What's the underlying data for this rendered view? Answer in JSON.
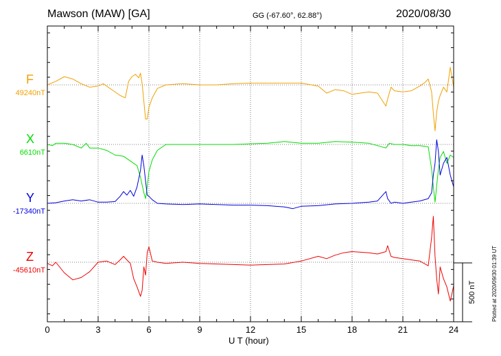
{
  "header": {
    "station": "Mawson (MAW)  [GA]",
    "coords": "GG (-67.60°,  62.88°)",
    "date": "2020/08/30"
  },
  "side_note": "Plotted at 2020/09/30 01:39 UT",
  "scale_bar": {
    "label": "500 nT",
    "value_nT": 500
  },
  "chart_data": {
    "type": "line",
    "title": "",
    "xlabel": "U T (hour)",
    "ylabel": "",
    "xlim": [
      0,
      24
    ],
    "x_ticks": [
      0,
      3,
      6,
      9,
      12,
      15,
      18,
      21,
      24
    ],
    "x_tick_labels": [
      "0",
      "3",
      "6",
      "9",
      "12",
      "15",
      "18",
      "21",
      "24"
    ],
    "grid": true,
    "series": [
      {
        "name": "F",
        "baseline_label": "49240nT",
        "baseline_nT": 49240,
        "color": "#f0a000",
        "x": [
          0,
          0.5,
          1,
          1.5,
          2,
          2.5,
          3,
          3.3,
          3.8,
          4.3,
          4.6,
          4.8,
          5,
          5.2,
          5.4,
          5.5,
          5.6,
          5.7,
          5.8,
          5.9,
          6.0,
          6.2,
          6.5,
          7,
          8,
          9,
          10,
          11,
          12,
          13,
          14,
          15,
          16,
          16.5,
          17,
          17.5,
          18,
          19,
          19.5,
          20,
          20.1,
          20.3,
          20.5,
          21,
          21.5,
          22,
          22.3,
          22.5,
          22.7,
          22.8,
          22.9,
          23.0,
          23.1,
          23.2,
          23.4,
          23.6,
          23.8,
          24
        ],
        "y": [
          49240,
          49270,
          49310,
          49290,
          49250,
          49220,
          49230,
          49250,
          49200,
          49150,
          49130,
          49270,
          49310,
          49330,
          49300,
          49340,
          49250,
          49100,
          48950,
          48950,
          49050,
          49130,
          49210,
          49240,
          49250,
          49240,
          49240,
          49250,
          49255,
          49255,
          49255,
          49255,
          49230,
          49170,
          49200,
          49190,
          49160,
          49180,
          49170,
          49060,
          49120,
          49220,
          49190,
          49180,
          49190,
          49230,
          49260,
          49290,
          49180,
          49000,
          48850,
          49010,
          49100,
          49150,
          49220,
          49180,
          49390,
          49220
        ]
      },
      {
        "name": "X",
        "baseline_label": "6610nT",
        "baseline_nT": 6610,
        "color": "#00dd00",
        "x": [
          0,
          0.3,
          0.5,
          1,
          1.5,
          2,
          2.3,
          2.5,
          3,
          3.5,
          4,
          4.5,
          5,
          5.3,
          5.5,
          5.7,
          5.8,
          5.9,
          6.0,
          6.2,
          6.5,
          7,
          8,
          9,
          10,
          11,
          12,
          13,
          14,
          15,
          16,
          17,
          18,
          19,
          19.5,
          20,
          20.2,
          20.5,
          21,
          21.5,
          22,
          22.5,
          22.7,
          22.8,
          22.9,
          23.0,
          23.1,
          23.2,
          23.4,
          23.6,
          23.8,
          24
        ],
        "y": [
          6610,
          6600,
          6620,
          6620,
          6610,
          6580,
          6620,
          6580,
          6580,
          6560,
          6520,
          6510,
          6460,
          6430,
          6330,
          6200,
          6150,
          6250,
          6380,
          6480,
          6560,
          6610,
          6610,
          6610,
          6610,
          6610,
          6615,
          6620,
          6635,
          6620,
          6620,
          6635,
          6630,
          6620,
          6600,
          6580,
          6620,
          6610,
          6610,
          6600,
          6600,
          6590,
          6400,
          6250,
          6120,
          6260,
          6400,
          6500,
          6550,
          6450,
          6520,
          6500
        ]
      },
      {
        "name": "Y",
        "baseline_label": "-17340nT",
        "baseline_nT": -17340,
        "color": "#0000dd",
        "x": [
          0,
          0.5,
          1,
          1.5,
          2,
          2.5,
          3,
          3.5,
          4,
          4.3,
          4.5,
          4.7,
          4.9,
          5.1,
          5.3,
          5.5,
          5.6,
          5.7,
          5.8,
          5.9,
          6.0,
          6.2,
          6.5,
          7,
          8,
          9,
          10,
          11,
          12,
          13,
          14,
          14.5,
          15,
          16,
          17,
          18,
          19,
          19.5,
          20,
          20.1,
          20.3,
          20.5,
          21,
          21.5,
          22,
          22.5,
          22.7,
          22.8,
          22.9,
          23.0,
          23.1,
          23.2,
          23.4,
          23.6,
          23.8,
          24
        ],
        "y": [
          -17340,
          -17335,
          -17320,
          -17310,
          -17320,
          -17310,
          -17330,
          -17330,
          -17325,
          -17280,
          -17240,
          -17270,
          -17230,
          -17280,
          -17200,
          -17060,
          -16930,
          -17020,
          -17150,
          -17270,
          -17280,
          -17310,
          -17340,
          -17345,
          -17350,
          -17345,
          -17350,
          -17355,
          -17355,
          -17360,
          -17370,
          -17385,
          -17365,
          -17360,
          -17345,
          -17340,
          -17330,
          -17320,
          -17240,
          -17300,
          -17340,
          -17330,
          -17340,
          -17330,
          -17320,
          -17300,
          -17250,
          -17100,
          -17000,
          -16800,
          -16900,
          -17100,
          -17000,
          -16950,
          -17100,
          -17200
        ]
      },
      {
        "name": "Z",
        "baseline_label": "-45610nT",
        "baseline_nT": -45610,
        "color": "#ee0000",
        "x": [
          0,
          0.3,
          0.5,
          1,
          1.5,
          2,
          2.5,
          3,
          3.5,
          4,
          4.3,
          4.5,
          4.7,
          4.9,
          5.1,
          5.3,
          5.5,
          5.6,
          5.7,
          5.8,
          5.9,
          6.0,
          6.2,
          6.5,
          7,
          8,
          9,
          10,
          11,
          12,
          13,
          14,
          15,
          16,
          16.5,
          17,
          17.5,
          18,
          19,
          19.5,
          20,
          20.1,
          20.3,
          20.5,
          21,
          21.5,
          22,
          22.5,
          22.7,
          22.8,
          22.9,
          23.0,
          23.1,
          23.2,
          23.4,
          23.6,
          23.8,
          24
        ],
        "y": [
          -45620,
          -45640,
          -45610,
          -45700,
          -45760,
          -45740,
          -45690,
          -45610,
          -45600,
          -45630,
          -45590,
          -45560,
          -45590,
          -45620,
          -45750,
          -45820,
          -45900,
          -45850,
          -45650,
          -45720,
          -45530,
          -45480,
          -45600,
          -45610,
          -45620,
          -45610,
          -45620,
          -45625,
          -45630,
          -45635,
          -45630,
          -45625,
          -45600,
          -45560,
          -45580,
          -45550,
          -45530,
          -45520,
          -45530,
          -45540,
          -45520,
          -45470,
          -45560,
          -45570,
          -45580,
          -45590,
          -45600,
          -45640,
          -45400,
          -45220,
          -45560,
          -45750,
          -45880,
          -45650,
          -45750,
          -45820,
          -45940,
          -45810
        ]
      }
    ]
  }
}
